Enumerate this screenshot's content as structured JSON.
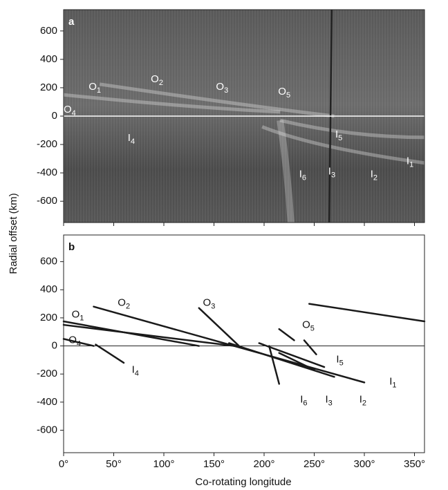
{
  "charts": [
    {
      "type": "image",
      "panel_label": "a",
      "xlim": [
        0,
        360
      ],
      "ylim": [
        -750,
        750
      ],
      "xticks": [
        0,
        50,
        100,
        150,
        200,
        250,
        300,
        350
      ],
      "yticks": [
        -600,
        -400,
        -200,
        0,
        200,
        400,
        600
      ],
      "hline": 0,
      "annotations": [
        {
          "text": "O",
          "sub": "1",
          "x": 25,
          "y": 205
        },
        {
          "text": "O",
          "sub": "2",
          "x": 87,
          "y": 259
        },
        {
          "text": "O",
          "sub": "3",
          "x": 152,
          "y": 205
        },
        {
          "text": "O",
          "sub": "5",
          "x": 214,
          "y": 171
        },
        {
          "text": "O",
          "sub": "4",
          "x": 0,
          "y": 45
        },
        {
          "text": "I",
          "sub": "4",
          "x": 64,
          "y": -156
        },
        {
          "text": "I",
          "sub": "5",
          "x": 271,
          "y": -132
        },
        {
          "text": "I",
          "sub": "6",
          "x": 235,
          "y": -411
        },
        {
          "text": "I",
          "sub": "3",
          "x": 264,
          "y": -391
        },
        {
          "text": "I",
          "sub": "2",
          "x": 306,
          "y": -411
        },
        {
          "text": "I",
          "sub": "1",
          "x": 342,
          "y": -318
        }
      ]
    },
    {
      "type": "line",
      "panel_label": "b",
      "xlim": [
        0,
        360
      ],
      "ylim": [
        -760,
        790
      ],
      "xticks": [
        {
          "value": 0,
          "label": "0°"
        },
        {
          "value": 50,
          "label": "50°"
        },
        {
          "value": 100,
          "label": "100°"
        },
        {
          "value": 150,
          "label": "150°"
        },
        {
          "value": 200,
          "label": "200°"
        },
        {
          "value": 250,
          "label": "250°"
        },
        {
          "value": 300,
          "label": "300°"
        },
        {
          "value": 350,
          "label": "350°"
        }
      ],
      "yticks": [
        -600,
        -400,
        -200,
        0,
        200,
        400,
        600
      ],
      "hline": 0,
      "color": "#1a1a1a",
      "series": [
        {
          "x": [
            0,
            135
          ],
          "values": [
            175,
            0
          ]
        },
        {
          "x": [
            0,
            170
          ],
          "values": [
            150,
            0
          ]
        },
        {
          "x": [
            30,
            170
          ],
          "values": [
            280,
            0
          ]
        },
        {
          "x": [
            135,
            175
          ],
          "values": [
            270,
            0
          ]
        },
        {
          "x": [
            0,
            30
          ],
          "values": [
            50,
            0
          ]
        },
        {
          "x": [
            32,
            60
          ],
          "values": [
            10,
            -120
          ]
        },
        {
          "x": [
            165,
            270
          ],
          "values": [
            20,
            -220
          ]
        },
        {
          "x": [
            170,
            300
          ],
          "values": [
            0,
            -260
          ]
        },
        {
          "x": [
            195,
            260
          ],
          "values": [
            20,
            -150
          ]
        },
        {
          "x": [
            205,
            215
          ],
          "values": [
            0,
            -270
          ]
        },
        {
          "x": [
            215,
            250
          ],
          "values": [
            -50,
            -170
          ]
        },
        {
          "x": [
            215,
            230
          ],
          "values": [
            120,
            40
          ]
        },
        {
          "x": [
            240,
            252
          ],
          "values": [
            40,
            -60
          ]
        },
        {
          "x": [
            245,
            360
          ],
          "values": [
            300,
            175
          ]
        }
      ],
      "annotations": [
        {
          "text": "O",
          "sub": "1",
          "x": 8,
          "y": 221
        },
        {
          "text": "O",
          "sub": "2",
          "x": 54,
          "y": 305
        },
        {
          "text": "O",
          "sub": "3",
          "x": 139,
          "y": 305
        },
        {
          "text": "O",
          "sub": "5",
          "x": 238,
          "y": 148
        },
        {
          "text": "O",
          "sub": "4",
          "x": 5,
          "y": 39
        },
        {
          "text": "I",
          "sub": "4",
          "x": 68,
          "y": -172
        },
        {
          "text": "I",
          "sub": "5",
          "x": 272,
          "y": -98
        },
        {
          "text": "I",
          "sub": "6",
          "x": 236,
          "y": -384
        },
        {
          "text": "I",
          "sub": "3",
          "x": 261,
          "y": -384
        },
        {
          "text": "I",
          "sub": "2",
          "x": 295,
          "y": -384
        },
        {
          "text": "I",
          "sub": "1",
          "x": 325,
          "y": -256
        }
      ]
    }
  ],
  "y_label": "Radial offset (km)",
  "x_label": "Co-rotating longitude"
}
